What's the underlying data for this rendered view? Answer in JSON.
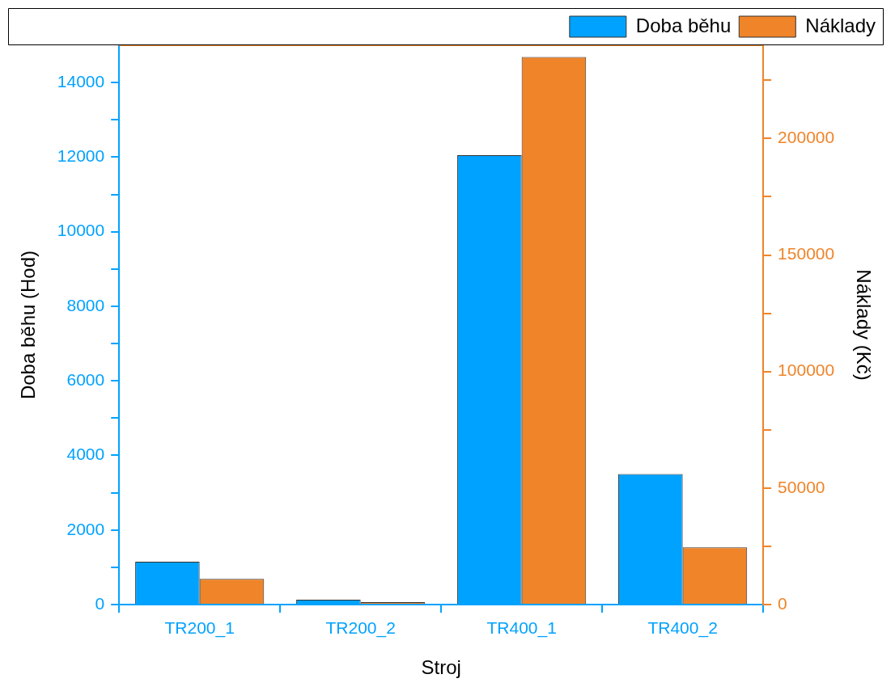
{
  "chart_data": {
    "type": "bar",
    "xlabel": "Stroj",
    "ylabel": "Doba běhu (Hod)",
    "y2label": "Náklady (Kč)",
    "categories": [
      "TR200_1",
      "TR200_2",
      "TR400_1",
      "TR400_2"
    ],
    "series": [
      {
        "name": "Doba běhu",
        "color": "#00a2ff",
        "values": [
          1150,
          130,
          12050,
          3500
        ]
      },
      {
        "name": "Náklady",
        "color": "#ef8429",
        "axis": "y2",
        "values": [
          11000,
          1000,
          235000,
          24500
        ]
      }
    ],
    "ylim": [
      0,
      15000
    ],
    "yticks": [
      0,
      {
        "value": 1000,
        "label": null
      },
      2000,
      {
        "value": 3000,
        "label": null
      },
      4000,
      {
        "value": 5000,
        "label": null
      },
      6000,
      {
        "value": 7000,
        "label": null
      },
      8000,
      {
        "value": 9000,
        "label": null
      },
      10000,
      {
        "value": 11000,
        "label": null
      },
      12000,
      {
        "value": 13000,
        "label": null
      },
      14000
    ],
    "y2lim": [
      0,
      240000
    ],
    "y2ticks": [
      0,
      {
        "value": 25000,
        "label": null
      },
      50000,
      {
        "value": 75000,
        "label": null
      },
      100000,
      {
        "value": 125000,
        "label": null
      },
      150000,
      {
        "value": 175000,
        "label": null
      },
      200000,
      {
        "value": 225000,
        "label": null
      }
    ],
    "legend": "top right",
    "grid": false
  }
}
